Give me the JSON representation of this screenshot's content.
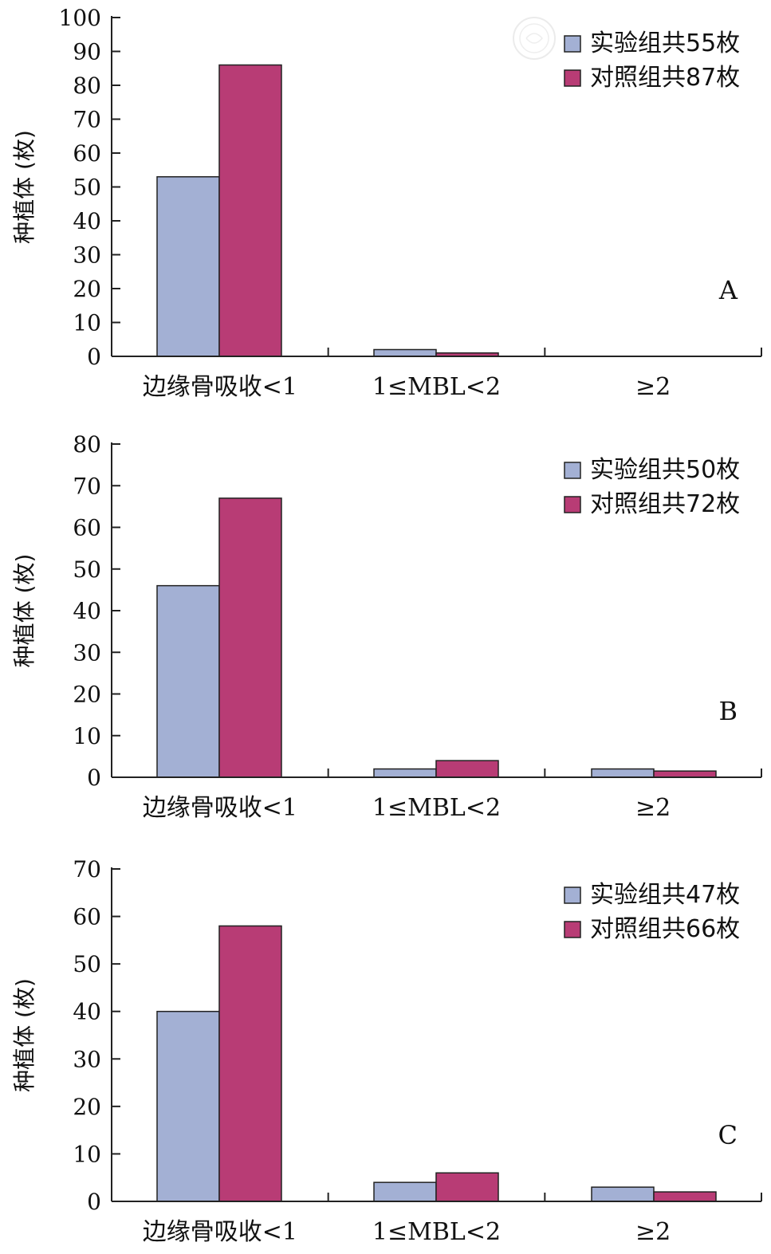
{
  "chart_data": [
    {
      "type": "bar",
      "panel_label": "A",
      "ylabel": "种植体 (枚)",
      "categories": [
        "边缘骨吸收<1",
        "1≤MBL<2",
        "≥2"
      ],
      "ylim": [
        0,
        100
      ],
      "yticks": [
        0,
        10,
        20,
        30,
        40,
        50,
        60,
        70,
        80,
        90,
        100
      ],
      "legend_position": "top-right",
      "series": [
        {
          "name": "实验组共55枚",
          "color": "#a3b0d4",
          "values": [
            53,
            2,
            0
          ]
        },
        {
          "name": "对照组共87枚",
          "color": "#b83c75",
          "values": [
            86,
            1,
            0
          ]
        }
      ]
    },
    {
      "type": "bar",
      "panel_label": "B",
      "ylabel": "种植体 (枚)",
      "categories": [
        "边缘骨吸收<1",
        "1≤MBL<2",
        "≥2"
      ],
      "ylim": [
        0,
        80
      ],
      "yticks": [
        0,
        10,
        20,
        30,
        40,
        50,
        60,
        70,
        80
      ],
      "legend_position": "top-right",
      "series": [
        {
          "name": "实验组共50枚",
          "color": "#a3b0d4",
          "values": [
            46,
            2,
            2
          ]
        },
        {
          "name": "对照组共72枚",
          "color": "#b83c75",
          "values": [
            67,
            4,
            1.5
          ]
        }
      ]
    },
    {
      "type": "bar",
      "panel_label": "C",
      "ylabel": "种植体 (枚)",
      "categories": [
        "边缘骨吸收<1",
        "1≤MBL<2",
        "≥2"
      ],
      "ylim": [
        0,
        70
      ],
      "yticks": [
        0,
        10,
        20,
        30,
        40,
        50,
        60,
        70
      ],
      "legend_position": "top-right",
      "series": [
        {
          "name": "实验组共47枚",
          "color": "#a3b0d4",
          "values": [
            40,
            4,
            3
          ]
        },
        {
          "name": "对照组共66枚",
          "color": "#b83c75",
          "values": [
            58,
            6,
            2
          ]
        }
      ]
    }
  ]
}
